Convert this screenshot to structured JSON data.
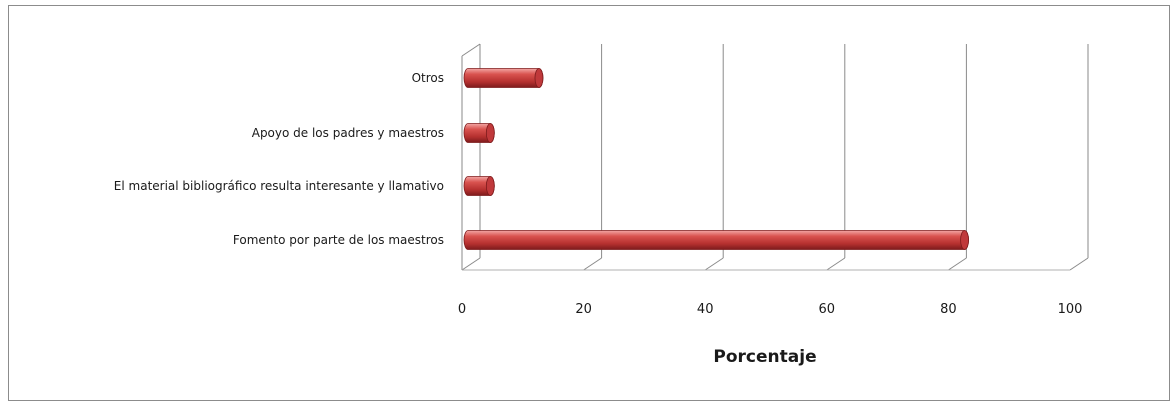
{
  "chart_data": {
    "type": "bar",
    "orientation": "horizontal",
    "style": "3d-cylinder",
    "categories": [
      "Otros",
      "Apoyo de los padres y maestros",
      "El material bibliográfico resulta interesante y llamativo",
      "Fomento por parte de los maestros"
    ],
    "values": [
      12,
      4,
      4,
      82
    ],
    "xlabel": "Porcentaje",
    "ylabel": "",
    "title": "",
    "xlim": [
      0,
      100
    ],
    "xticks": [
      "0",
      "20",
      "40",
      "60",
      "80",
      "100"
    ],
    "grid": "vertical",
    "legend": "none",
    "colors": {
      "bar": "#c0393b",
      "bar_light": "#e87a78",
      "bar_dark": "#7d1b1c",
      "grid": "#8a8a8a"
    }
  }
}
